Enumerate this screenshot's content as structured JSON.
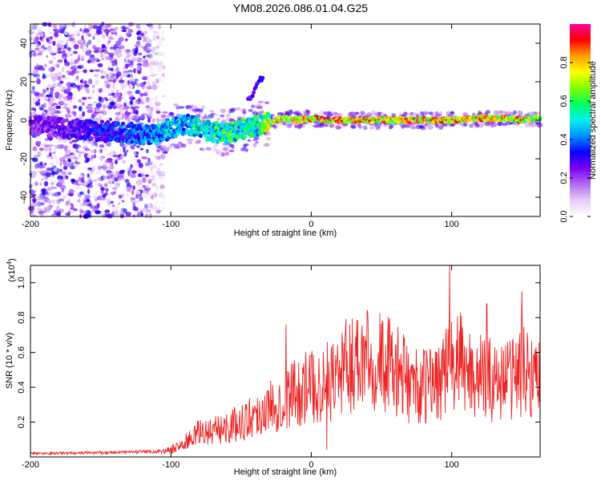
{
  "title": "YM08.2026.086.01.04.G25",
  "chart_data": [
    {
      "id": "spectrogram",
      "type": "heatmap",
      "title": "YM08.2026.086.01.04.G25",
      "xlabel": "Height of straight line (km)",
      "ylabel": "Frequency (Hz)",
      "xlim": [
        -200,
        163
      ],
      "ylim": [
        -50,
        50
      ],
      "xticks": [
        "-200",
        "-100",
        "0",
        "100"
      ],
      "yticks": [
        "40",
        "20",
        "0",
        "-20",
        "-40"
      ],
      "colorbar": {
        "label": "Normalized spectral amplitude",
        "range": [
          0.0,
          1.0
        ],
        "ticks": [
          "0.0",
          "0.2",
          "0.4",
          "0.6",
          "0.8"
        ],
        "colors": [
          "#ffffff",
          "#e6ccf5",
          "#b36bf2",
          "#7a00f0",
          "#0a00ff",
          "#0090ff",
          "#00f0f0",
          "#00ff60",
          "#80ff00",
          "#ffff00",
          "#ffa000",
          "#ff0000",
          "#ff00a0"
        ]
      },
      "ridge": {
        "height": [
          -200,
          -180,
          -160,
          -140,
          -120,
          -110,
          -100,
          -90,
          -80,
          -70,
          -60,
          -50,
          -40,
          -35,
          -30,
          -25,
          -20,
          -10,
          0,
          10,
          20,
          40,
          60,
          80,
          100,
          120,
          140,
          150,
          160,
          163
        ],
        "frequency": [
          -2,
          -4,
          -5,
          -6,
          -7,
          -8,
          -4,
          -2,
          -4,
          -6,
          -7,
          -5,
          -3,
          -2,
          -1,
          0,
          1,
          0,
          1,
          0,
          0,
          0,
          0,
          0,
          0,
          1,
          1,
          0,
          1,
          1
        ],
        "amplitude": [
          0.25,
          0.3,
          0.35,
          0.4,
          0.45,
          0.5,
          0.55,
          0.5,
          0.6,
          0.6,
          0.65,
          0.6,
          0.6,
          0.7,
          0.8,
          0.85,
          0.88,
          0.9,
          0.92,
          0.95,
          0.95,
          0.95,
          0.92,
          0.94,
          0.93,
          0.9,
          0.85,
          0.88,
          0.8,
          0.8
        ]
      }
    },
    {
      "id": "snr",
      "type": "line",
      "xlabel": "Height of straight line (km)",
      "ylabel": "SNR (10 * v/v)",
      "scale_label": "(x10",
      "scale_exp": "4",
      "scale_close": ")",
      "xlim": [
        -200,
        163
      ],
      "ylim": [
        0,
        1.1
      ],
      "xticks": [
        "-200",
        "-100",
        "0",
        "100"
      ],
      "yticks": [
        "1.0",
        "0.8",
        "0.6",
        "0.4",
        "0.2"
      ],
      "color": "#ee2222",
      "trend": {
        "height": [
          -200,
          -150,
          -110,
          -100,
          -90,
          -80,
          -70,
          -60,
          -50,
          -40,
          -30,
          -20,
          -10,
          0,
          10,
          20,
          30,
          35,
          40,
          50,
          60,
          70,
          80,
          90,
          100,
          105,
          110,
          120,
          130,
          140,
          150,
          160,
          163
        ],
        "value": [
          0.02,
          0.025,
          0.03,
          0.04,
          0.08,
          0.14,
          0.15,
          0.17,
          0.2,
          0.24,
          0.28,
          0.35,
          0.38,
          0.4,
          0.42,
          0.48,
          0.55,
          0.58,
          0.6,
          0.55,
          0.5,
          0.42,
          0.4,
          0.45,
          0.52,
          0.55,
          0.5,
          0.46,
          0.44,
          0.45,
          0.5,
          0.48,
          0.45
        ]
      },
      "peaks": [
        {
          "height": 98.5,
          "value": 1.12
        },
        {
          "height": -18,
          "value": 0.76
        },
        {
          "height": 40,
          "value": 0.84
        },
        {
          "height": 125,
          "value": 0.88
        },
        {
          "height": 150,
          "value": 0.95
        },
        {
          "height": 11,
          "value": 0.04
        }
      ]
    }
  ]
}
